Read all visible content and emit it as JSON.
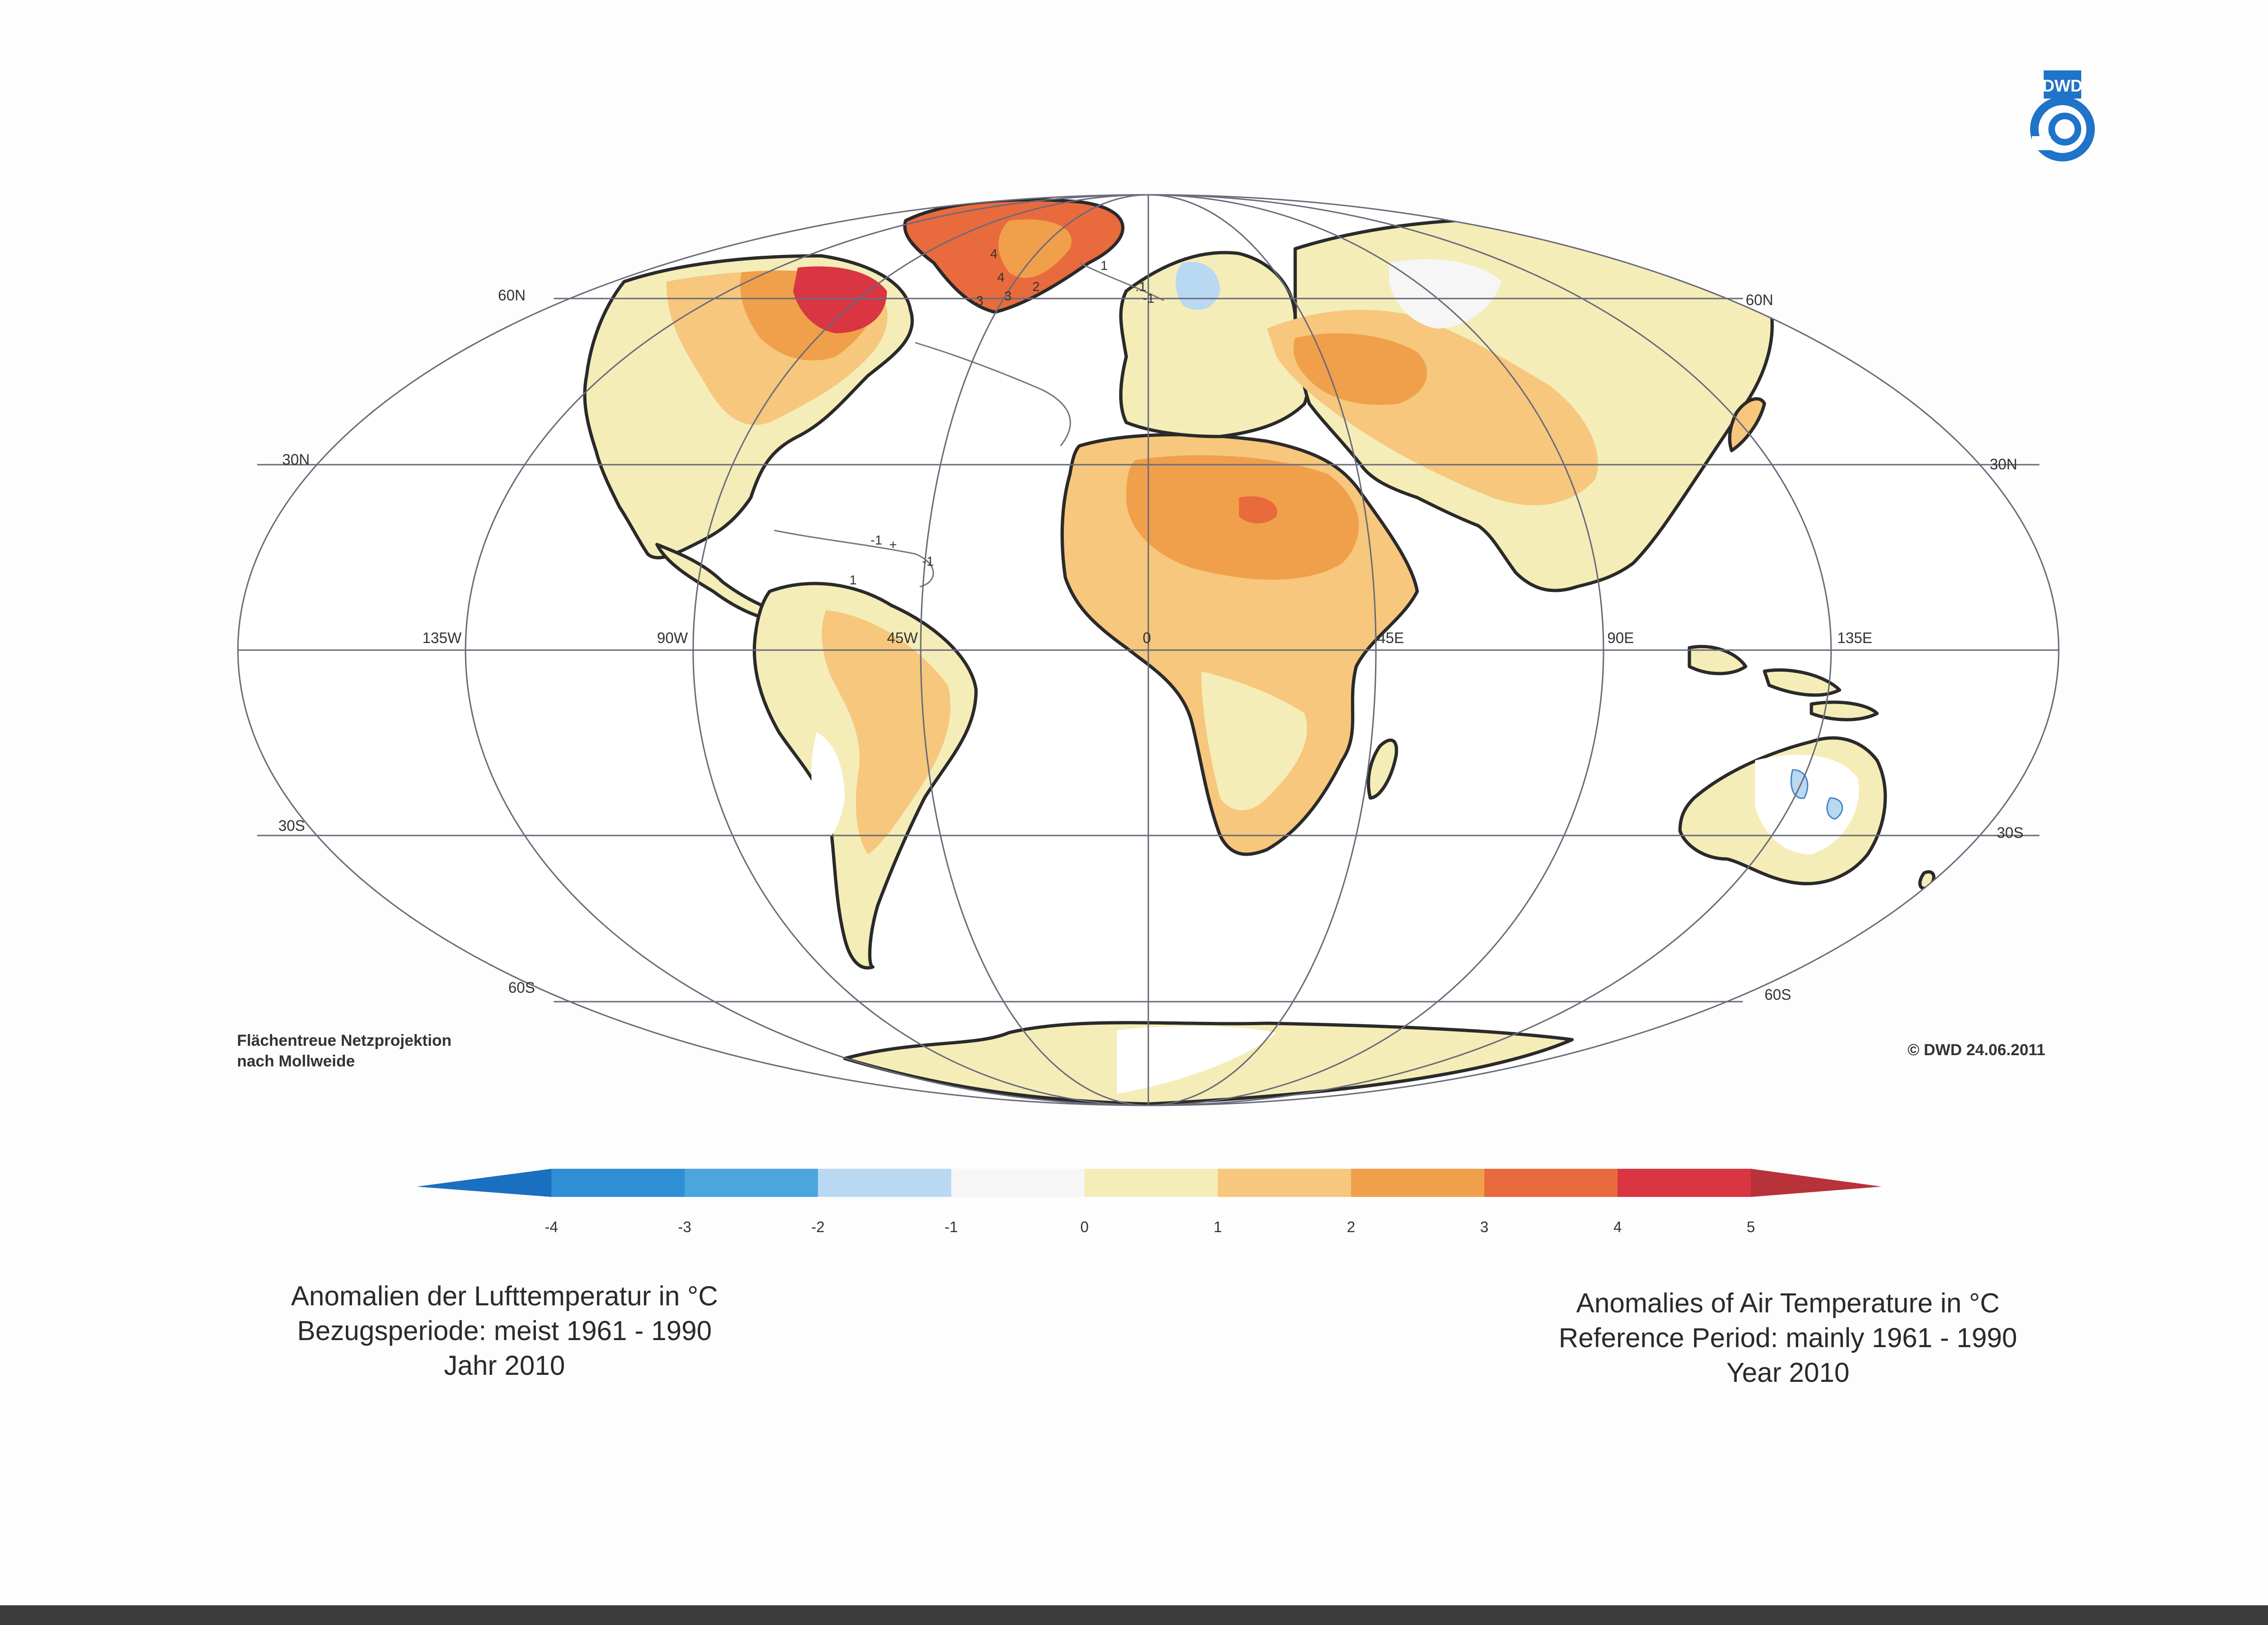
{
  "map": {
    "parallels": [
      {
        "lat": 60,
        "left": "60N",
        "right": "60N"
      },
      {
        "lat": 30,
        "left": "30N",
        "right": "30N"
      },
      {
        "lat": -30,
        "left": "30S",
        "right": "30S"
      },
      {
        "lat": -60,
        "left": "60S",
        "right": "60S"
      }
    ],
    "meridian_labels": [
      "135W",
      "90W",
      "45W",
      "0",
      "45E",
      "90E",
      "135E"
    ],
    "contour_labels": [
      "4",
      "3",
      "4",
      "3",
      "2",
      "1",
      "-1",
      "-1",
      "1",
      "+",
      "-1",
      "-.1"
    ]
  },
  "colorbar": {
    "ticks": [
      "-4",
      "-3",
      "-2",
      "-1",
      "0",
      "1",
      "2",
      "3",
      "4",
      "5"
    ],
    "colors": {
      "below_-4": "#1a6fc0",
      "-4_-3": "#2f8fd4",
      "-3_-2": "#4aa6dd",
      "-2_-1": "#b9d8f2",
      "-1_0": "#f6f6f6",
      "0_1": "#f4edb8",
      "1_2": "#f6c77c",
      "2_3": "#f0a04a",
      "3_4": "#e96a3c",
      "4_5": "#d93542",
      "above_5": "#b8323a"
    }
  },
  "notes": {
    "projection_line1": "Flächentreue Netzprojektion",
    "projection_line2": "nach Mollweide",
    "copyright": "© DWD 24.06.2011"
  },
  "logo": {
    "text": "DWD",
    "color": "#1f73c8"
  },
  "title_de": {
    "line1": "Anomalien der Lufttemperatur in °C",
    "line2": "Bezugsperiode: meist 1961 - 1990",
    "line3": "Jahr 2010"
  },
  "title_en": {
    "line1": "Anomalies of Air Temperature in °C",
    "line2": "Reference Period: mainly 1961 - 1990",
    "line3": "Year 2010"
  }
}
